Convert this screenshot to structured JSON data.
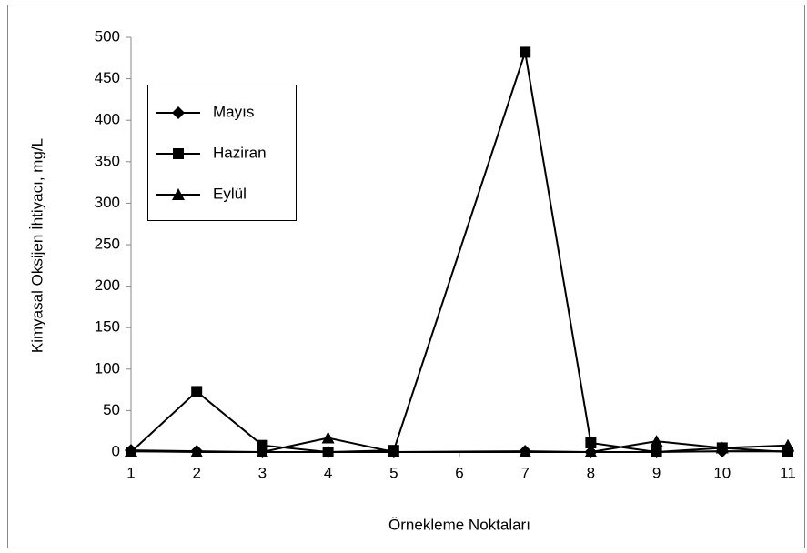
{
  "chart_data": {
    "type": "line",
    "x_label": "Örnekleme Noktaları",
    "y_label": "Kimyasal Oksijen İhtiyacı,  mg/L",
    "x": [
      1,
      2,
      3,
      4,
      5,
      7,
      8,
      9,
      10,
      11
    ],
    "series": [
      {
        "name": "Mayıs",
        "color": "#000000",
        "marker": "diamond",
        "values": [
          2,
          1,
          0,
          0,
          0,
          1,
          0,
          0,
          1,
          1
        ]
      },
      {
        "name": "Haziran",
        "color": "#000000",
        "marker": "square",
        "values": [
          0,
          73,
          8,
          0,
          2,
          482,
          11,
          0,
          5,
          0
        ]
      },
      {
        "name": "Eylül",
        "color": "#000000",
        "marker": "triangle",
        "values": [
          1,
          0,
          0,
          17,
          0,
          0,
          0,
          13,
          5,
          8
        ]
      }
    ],
    "xlim": [
      1,
      11
    ],
    "xticks": [
      1,
      2,
      3,
      4,
      5,
      6,
      7,
      8,
      9,
      10,
      11
    ],
    "ylim": [
      0,
      500
    ],
    "yticks": [
      0,
      50,
      100,
      150,
      200,
      250,
      300,
      350,
      400,
      450,
      500
    ],
    "grid": false,
    "legend": "upper left"
  }
}
